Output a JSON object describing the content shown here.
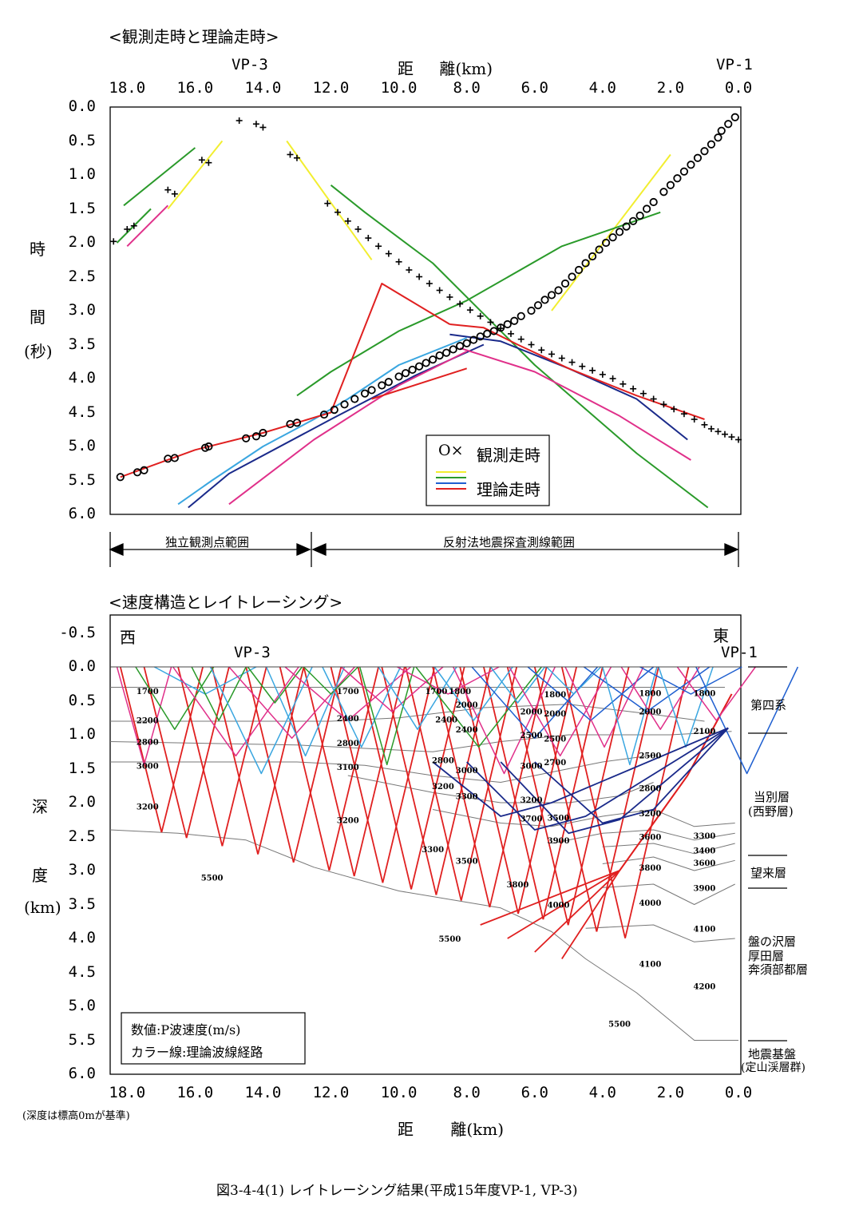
{
  "colors": {
    "red": "#e02020",
    "green": "#2a9a2a",
    "yellow": "#f2ee30",
    "blue": "#1f5fd0",
    "navy": "#1a2a8a",
    "lightblue": "#3aa6e0",
    "magenta": "#e0308a",
    "axis": "#000000",
    "grid": "#cfcfcf",
    "layer": "#777777"
  },
  "top": {
    "title": "<観測走時と理論走時>",
    "vp3": "VP-3",
    "vp1": "VP-1",
    "xlabel": "距 離(km)",
    "ylabel_chars": [
      "時",
      "間",
      "(秒)"
    ],
    "legend_obs": "観測走時",
    "legend_obs_symbol": "O×",
    "legend_theory": "理論走時",
    "range_left": "独立観測点範囲",
    "range_right": "反射法地震探査測線範囲"
  },
  "bottom": {
    "title": "<速度構造とレイトレーシング>",
    "west": "西",
    "east": "東",
    "vp3": "VP-3",
    "vp1": "VP-1",
    "ylabel_chars": [
      "深",
      "度",
      "(km)"
    ],
    "xlabel": "距 離(km)",
    "note": "(深度は標高0mが基準)",
    "legend_line1": "数値:P波速度(m/s)",
    "legend_line2": "カラー線:理論波線経路",
    "formations": [
      {
        "name": "第四系",
        "sub": ""
      },
      {
        "name": "当別層",
        "sub": "(西野層)"
      },
      {
        "name": "望来層",
        "sub": ""
      },
      {
        "name": "盤の沢層",
        "sub": "厚田層"
      },
      {
        "name": "奔須部都層",
        "sub": ""
      },
      {
        "name": "地震基盤",
        "sub": "(定山渓層群)"
      }
    ]
  },
  "caption": "図3-4-4(1) レイトレーシング結果(平成15年度VP-1, VP-3)",
  "chart_data": [
    {
      "type": "scatter",
      "title": "<観測走時と理論走時>",
      "xlabel": "距 離(km)",
      "ylabel": "時 間 (秒)",
      "xlim": [
        18.5,
        0.0
      ],
      "ylim": [
        6.0,
        0.0
      ],
      "x_ticks": [
        "18.0",
        "16.0",
        "14.0",
        "12.0",
        "10.0",
        "8.0",
        "6.0",
        "4.0",
        "2.0",
        "0.0"
      ],
      "y_ticks": [
        "0.0",
        "0.5",
        "1.0",
        "1.5",
        "2.0",
        "2.5",
        "3.0",
        "3.5",
        "4.0",
        "4.5",
        "5.0",
        "5.5",
        "6.0"
      ],
      "legend": "right-bottom",
      "series": [
        {
          "name": "観測走時",
          "marker": "circle",
          "x": [
            0.1,
            0.3,
            0.5,
            0.6,
            0.8,
            1.0,
            1.2,
            1.4,
            1.6,
            1.8,
            2.0,
            2.2,
            2.5,
            2.7,
            2.9,
            3.1,
            3.3,
            3.5,
            3.7,
            3.9,
            4.1,
            4.3,
            4.5,
            4.7,
            4.9,
            5.1,
            5.3,
            5.5,
            5.7,
            5.9,
            6.1,
            6.4,
            6.6,
            6.8,
            7.0,
            7.2,
            7.4,
            7.6,
            7.8,
            8.0,
            8.2,
            8.4,
            8.6,
            8.8,
            9.0,
            9.2,
            9.4,
            9.6,
            9.8,
            10.0,
            10.3,
            10.5,
            10.8,
            11.0,
            11.3,
            11.6,
            11.9,
            12.2,
            13.0,
            13.2,
            14.0,
            14.2,
            14.5,
            15.6,
            15.7,
            16.6,
            16.8,
            17.5,
            17.7,
            18.2
          ],
          "y": [
            0.15,
            0.25,
            0.35,
            0.45,
            0.55,
            0.65,
            0.75,
            0.85,
            0.95,
            1.05,
            1.15,
            1.25,
            1.4,
            1.5,
            1.6,
            1.68,
            1.76,
            1.84,
            1.92,
            2.0,
            2.1,
            2.2,
            2.3,
            2.4,
            2.5,
            2.6,
            2.7,
            2.77,
            2.84,
            2.92,
            3.0,
            3.08,
            3.15,
            3.2,
            3.25,
            3.3,
            3.34,
            3.38,
            3.43,
            3.48,
            3.52,
            3.57,
            3.62,
            3.66,
            3.72,
            3.77,
            3.82,
            3.87,
            3.92,
            3.97,
            4.05,
            4.1,
            4.17,
            4.22,
            4.3,
            4.38,
            4.46,
            4.53,
            4.65,
            4.67,
            4.8,
            4.85,
            4.88,
            5.0,
            5.02,
            5.17,
            5.18,
            5.35,
            5.38,
            5.45
          ]
        },
        {
          "name": "観測走時 (×)",
          "marker": "plus",
          "x": [
            0.0,
            0.2,
            0.4,
            0.6,
            0.8,
            1.0,
            1.3,
            1.6,
            1.9,
            2.2,
            2.5,
            2.8,
            3.1,
            3.4,
            3.7,
            4.0,
            4.3,
            4.6,
            4.9,
            5.2,
            5.5,
            5.8,
            6.1,
            6.4,
            6.7,
            7.0,
            7.3,
            7.6,
            7.9,
            8.2,
            8.5,
            8.8,
            9.1,
            9.4,
            9.7,
            10.0,
            10.3,
            10.6,
            10.9,
            11.2,
            11.5,
            11.8,
            12.1,
            13.0,
            13.2,
            14.0,
            14.2,
            14.7,
            15.6,
            15.8,
            16.6,
            16.8,
            17.8,
            18.0,
            18.4
          ],
          "y": [
            4.9,
            4.86,
            4.82,
            4.78,
            4.74,
            4.68,
            4.6,
            4.52,
            4.45,
            4.38,
            4.3,
            4.22,
            4.15,
            4.08,
            4.0,
            3.94,
            3.88,
            3.82,
            3.76,
            3.7,
            3.64,
            3.58,
            3.5,
            3.42,
            3.34,
            3.26,
            3.17,
            3.08,
            2.99,
            2.9,
            2.8,
            2.7,
            2.6,
            2.5,
            2.4,
            2.28,
            2.16,
            2.05,
            1.93,
            1.8,
            1.68,
            1.55,
            1.42,
            0.75,
            0.7,
            0.3,
            0.25,
            0.2,
            0.82,
            0.78,
            1.28,
            1.22,
            1.75,
            1.8,
            1.98
          ]
        },
        {
          "name": "理論走時 (yellow)",
          "x": [
            [
              2.0,
              5.5
            ],
            [
              15.2,
              16.8
            ],
            [
              13.3,
              10.8
            ]
          ],
          "y": [
            [
              0.7,
              3.0
            ],
            [
              0.5,
              1.5
            ],
            [
              0.5,
              2.25
            ]
          ]
        },
        {
          "name": "理論走時 (green)",
          "x": [
            [
              2.3,
              5.2,
              8.0,
              10.0,
              12.0,
              13.0
            ],
            [
              0.9,
              3.0,
              6.0,
              9.0,
              11.0,
              12.0
            ],
            [
              16.0,
              18.1
            ],
            [
              17.3,
              18.3
            ]
          ],
          "y": [
            [
              1.55,
              2.05,
              2.85,
              3.3,
              3.9,
              4.25
            ],
            [
              5.9,
              5.1,
              3.8,
              2.3,
              1.55,
              1.15
            ],
            [
              0.6,
              1.45
            ],
            [
              1.5,
              2.0
            ]
          ]
        },
        {
          "name": "理論走時 (blue)",
          "x": [
            [
              1.5,
              3.0,
              5.0,
              7.0,
              8.5
            ],
            [
              8.0,
              10.0,
              11.5,
              12.5,
              14.0,
              15.5,
              16.5
            ],
            [
              7.5,
              9.5,
              12.0,
              15.0,
              16.2
            ]
          ],
          "y": [
            [
              4.9,
              4.3,
              3.85,
              3.45,
              3.35
            ],
            [
              3.4,
              3.8,
              4.3,
              4.6,
              5.0,
              5.5,
              5.85
            ],
            [
              3.5,
              3.95,
              4.6,
              5.4,
              5.9
            ]
          ]
        },
        {
          "name": "理論走時 (magenta)",
          "x": [
            [
              1.4,
              3.5,
              6.0,
              8.2
            ],
            [
              8.0,
              10.0,
              12.5,
              15.0
            ],
            [
              16.8,
              18.0
            ]
          ],
          "y": [
            [
              5.2,
              4.55,
              3.9,
              3.55
            ],
            [
              3.6,
              4.1,
              4.9,
              5.85
            ],
            [
              1.45,
              2.05
            ]
          ]
        },
        {
          "name": "理論走時 (red)",
          "x": [
            [
              1.0,
              3.0,
              5.0,
              6.5,
              7.5,
              8.5
            ],
            [
              8.0,
              10.8
            ],
            [
              8.5,
              10.5,
              12.0,
              14.0,
              16.0,
              18.2
            ]
          ],
          "y": [
            [
              4.6,
              4.25,
              3.85,
              3.5,
              3.25,
              3.2
            ],
            [
              3.85,
              4.3
            ],
            [
              3.2,
              2.6,
              4.5,
              4.8,
              5.05,
              5.45
            ]
          ]
        }
      ]
    },
    {
      "type": "line",
      "title": "<速度構造とレイトレーシング>",
      "xlabel": "距 離(km)",
      "ylabel": "深 度 (km)",
      "xlim": [
        18.5,
        0.0
      ],
      "ylim": [
        6.0,
        -0.5
      ],
      "x_ticks": [
        "18.0",
        "16.0",
        "14.0",
        "12.0",
        "10.0",
        "8.0",
        "6.0",
        "4.0",
        "2.0",
        "0.0"
      ],
      "y_ticks": [
        "-0.5",
        "0.0",
        "0.5",
        "1.0",
        "1.5",
        "2.0",
        "2.5",
        "3.0",
        "3.5",
        "4.0",
        "4.5",
        "5.0",
        "5.5",
        "6.0"
      ],
      "velocity_labels": [
        "1700",
        "1700",
        "1700",
        "1800",
        "1800",
        "1800",
        "1800",
        "2200",
        "2400",
        "2000",
        "2000",
        "2000",
        "2000",
        "2800",
        "2400",
        "2400",
        "2500",
        "2100",
        "2800",
        "2800",
        "2500",
        "2500",
        "3000",
        "3100",
        "3000",
        "2700",
        "3000",
        "3200",
        "3300",
        "3200",
        "3200",
        "2800",
        "3200",
        "3700",
        "3500",
        "3200",
        "3300",
        "3900",
        "3600",
        "3400",
        "3300",
        "3500",
        "3600",
        "3800",
        "3900",
        "5500",
        "3800",
        "4000",
        "4100",
        "4000",
        "5500",
        "4100",
        "4200",
        "5500"
      ],
      "velocity_values": [
        1700,
        1700,
        1700,
        1800,
        1800,
        1800,
        1800,
        2200,
        2400,
        2000,
        2000,
        2000,
        2000,
        2800,
        2400,
        2400,
        2500,
        2100,
        2800,
        2800,
        2500,
        2500,
        3000,
        3100,
        3000,
        2700,
        3000,
        3200,
        3300,
        3200,
        3200,
        2800,
        3200,
        3700,
        3500,
        3200,
        3300,
        3900,
        3600,
        3400,
        3300,
        3500,
        3600,
        3800,
        3900,
        5500,
        3800,
        4000,
        4100,
        4000,
        5500,
        4100,
        4200,
        5500
      ]
    }
  ]
}
